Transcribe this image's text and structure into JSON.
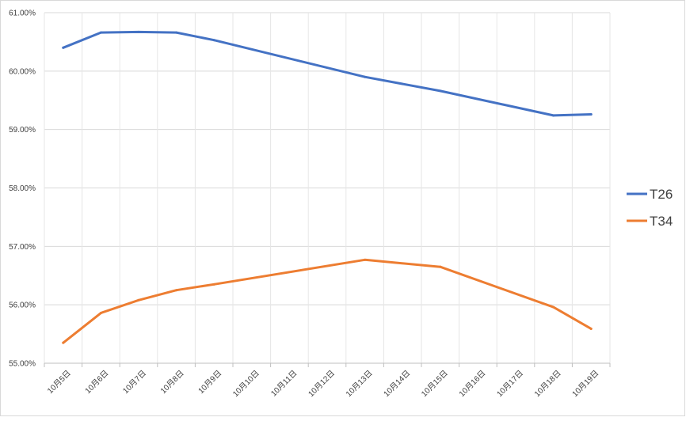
{
  "chart_data": {
    "type": "line",
    "categories": [
      "10月5日",
      "10月6日",
      "10月7日",
      "10月8日",
      "10月9日",
      "10月10日",
      "10月11日",
      "10月12日",
      "10月13日",
      "10月14日",
      "10月15日",
      "10月16日",
      "10月17日",
      "10月18日",
      "10月19日"
    ],
    "x": [
      "2024-10-05",
      "2024-10-06",
      "2024-10-07",
      "2024-10-08",
      "2024-10-09",
      "2024-10-10",
      "2024-10-11",
      "2024-10-12",
      "2024-10-13",
      "2024-10-14",
      "2024-10-15",
      "2024-10-16",
      "2024-10-17",
      "2024-10-18",
      "2024-10-19"
    ],
    "yticks": [
      "55.00%",
      "56.00%",
      "57.00%",
      "58.00%",
      "59.00%",
      "60.00%",
      "61.00%"
    ],
    "ylim": [
      55.0,
      61.0
    ],
    "grid": true,
    "legend_position": "right",
    "series": [
      {
        "name": "T26",
        "color": "#4472c4",
        "points": [
          {
            "x": "2024-10-05",
            "y": 60.4
          },
          {
            "x": "2024-10-06",
            "y": 60.66
          },
          {
            "x": "2024-10-07",
            "y": 60.67
          },
          {
            "x": "2024-10-08",
            "y": 60.66
          },
          {
            "x": "2024-10-09",
            "y": 60.53
          },
          {
            "x": "2024-10-13",
            "y": 59.9
          },
          {
            "x": "2024-10-15",
            "y": 59.66
          },
          {
            "x": "2024-10-18",
            "y": 59.24
          },
          {
            "x": "2024-10-19",
            "y": 59.26
          }
        ]
      },
      {
        "name": "T34",
        "color": "#ed7d31",
        "points": [
          {
            "x": "2024-10-05",
            "y": 55.35
          },
          {
            "x": "2024-10-06",
            "y": 55.86
          },
          {
            "x": "2024-10-07",
            "y": 56.08
          },
          {
            "x": "2024-10-08",
            "y": 56.25
          },
          {
            "x": "2024-10-09",
            "y": 56.35
          },
          {
            "x": "2024-10-13",
            "y": 56.77
          },
          {
            "x": "2024-10-15",
            "y": 56.65
          },
          {
            "x": "2024-10-18",
            "y": 55.96
          },
          {
            "x": "2024-10-19",
            "y": 55.59
          }
        ]
      }
    ]
  }
}
